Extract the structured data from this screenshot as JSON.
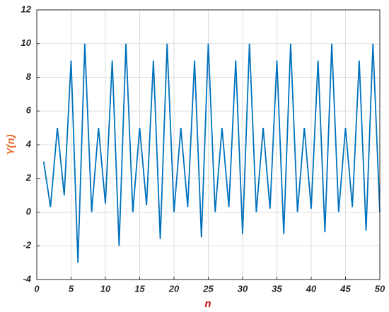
{
  "chart_data": {
    "type": "line",
    "xlabel": "n",
    "ylabel": "Y(n)",
    "x": [
      1,
      2,
      3,
      4,
      5,
      6,
      7,
      8,
      9,
      10,
      11,
      12,
      13,
      14,
      15,
      16,
      17,
      18,
      19,
      20,
      21,
      22,
      23,
      24,
      25,
      26,
      27,
      28,
      29,
      30,
      31,
      32,
      33,
      34,
      35,
      36,
      37,
      38,
      39,
      40,
      41,
      42,
      43,
      44,
      45,
      46,
      47,
      48,
      49,
      50
    ],
    "values": [
      3,
      0.3,
      5,
      1,
      9,
      -3,
      10,
      0,
      5,
      0.5,
      9,
      -2,
      10,
      0,
      5,
      0.4,
      9,
      -1.6,
      10,
      0,
      5,
      0.3,
      9,
      -1.5,
      10,
      0,
      5,
      0.3,
      9,
      -1.3,
      10,
      0,
      5,
      0.2,
      9,
      -1.3,
      10,
      0,
      5,
      0.2,
      9,
      -1.2,
      10,
      0,
      5,
      0.3,
      9,
      -1.1,
      10,
      0
    ],
    "color": "#0072bd",
    "xlim": [
      0,
      50
    ],
    "xticks": [
      0,
      5,
      10,
      15,
      20,
      25,
      30,
      35,
      40,
      45,
      50
    ],
    "ylim": [
      -4,
      12
    ],
    "yticks": [
      -4,
      -2,
      0,
      2,
      4,
      6,
      8,
      10,
      12
    ],
    "grid": true
  }
}
